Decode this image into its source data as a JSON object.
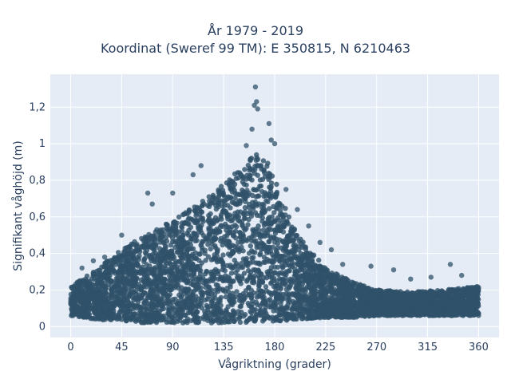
{
  "chart_data": {
    "type": "scatter",
    "title": "År 1979 - 2019",
    "subtitle": "Koordinat (Sweref 99 TM): E 350815, N 6210463",
    "xlabel": "Vågriktning (grader)",
    "ylabel": "Signifikant våghöjd (m)",
    "xlim": [
      -18,
      378
    ],
    "ylim": [
      -0.06,
      1.38
    ],
    "x_ticks": [
      0,
      45,
      90,
      135,
      180,
      225,
      270,
      315,
      360
    ],
    "x_tick_labels": [
      "0",
      "45",
      "90",
      "135",
      "180",
      "225",
      "270",
      "315",
      "360"
    ],
    "y_ticks": [
      0,
      0.2,
      0.4,
      0.6,
      0.8,
      1.0,
      1.2
    ],
    "y_tick_labels": [
      "0",
      "0,2",
      "0,4",
      "0,6",
      "0,8",
      "1",
      "1,2"
    ],
    "grid": true,
    "legend": "none",
    "marker_color": "#2f5169",
    "plot_background": "#e5ecf6",
    "envelope": {
      "x": [
        0,
        20,
        45,
        60,
        90,
        120,
        135,
        150,
        163,
        175,
        185,
        200,
        225,
        250,
        270,
        300,
        330,
        360
      ],
      "y_max": [
        0.22,
        0.3,
        0.42,
        0.48,
        0.58,
        0.7,
        0.78,
        0.88,
        0.95,
        0.9,
        0.72,
        0.5,
        0.32,
        0.24,
        0.2,
        0.19,
        0.2,
        0.22
      ],
      "y_min": [
        0.06,
        0.04,
        0.03,
        0.02,
        0.02,
        0.02,
        0.02,
        0.02,
        0.03,
        0.03,
        0.03,
        0.04,
        0.05,
        0.05,
        0.06,
        0.06,
        0.06,
        0.06
      ]
    },
    "outlier_points": [
      {
        "x": 163,
        "y": 1.31
      },
      {
        "x": 164,
        "y": 1.23
      },
      {
        "x": 162,
        "y": 1.21
      },
      {
        "x": 165,
        "y": 1.19
      },
      {
        "x": 175,
        "y": 1.11
      },
      {
        "x": 160,
        "y": 1.08
      },
      {
        "x": 177,
        "y": 1.02
      },
      {
        "x": 180,
        "y": 1.0
      },
      {
        "x": 155,
        "y": 0.99
      },
      {
        "x": 115,
        "y": 0.88
      },
      {
        "x": 108,
        "y": 0.83
      },
      {
        "x": 68,
        "y": 0.73
      },
      {
        "x": 90,
        "y": 0.73
      },
      {
        "x": 72,
        "y": 0.67
      },
      {
        "x": 190,
        "y": 0.75
      },
      {
        "x": 200,
        "y": 0.64
      },
      {
        "x": 210,
        "y": 0.55
      },
      {
        "x": 220,
        "y": 0.46
      },
      {
        "x": 230,
        "y": 0.42
      },
      {
        "x": 240,
        "y": 0.34
      },
      {
        "x": 265,
        "y": 0.33
      },
      {
        "x": 285,
        "y": 0.31
      },
      {
        "x": 300,
        "y": 0.26
      },
      {
        "x": 318,
        "y": 0.27
      },
      {
        "x": 335,
        "y": 0.34
      },
      {
        "x": 345,
        "y": 0.28
      },
      {
        "x": 10,
        "y": 0.32
      },
      {
        "x": 20,
        "y": 0.36
      },
      {
        "x": 30,
        "y": 0.38
      },
      {
        "x": 45,
        "y": 0.5
      },
      {
        "x": 55,
        "y": 0.45
      }
    ]
  }
}
